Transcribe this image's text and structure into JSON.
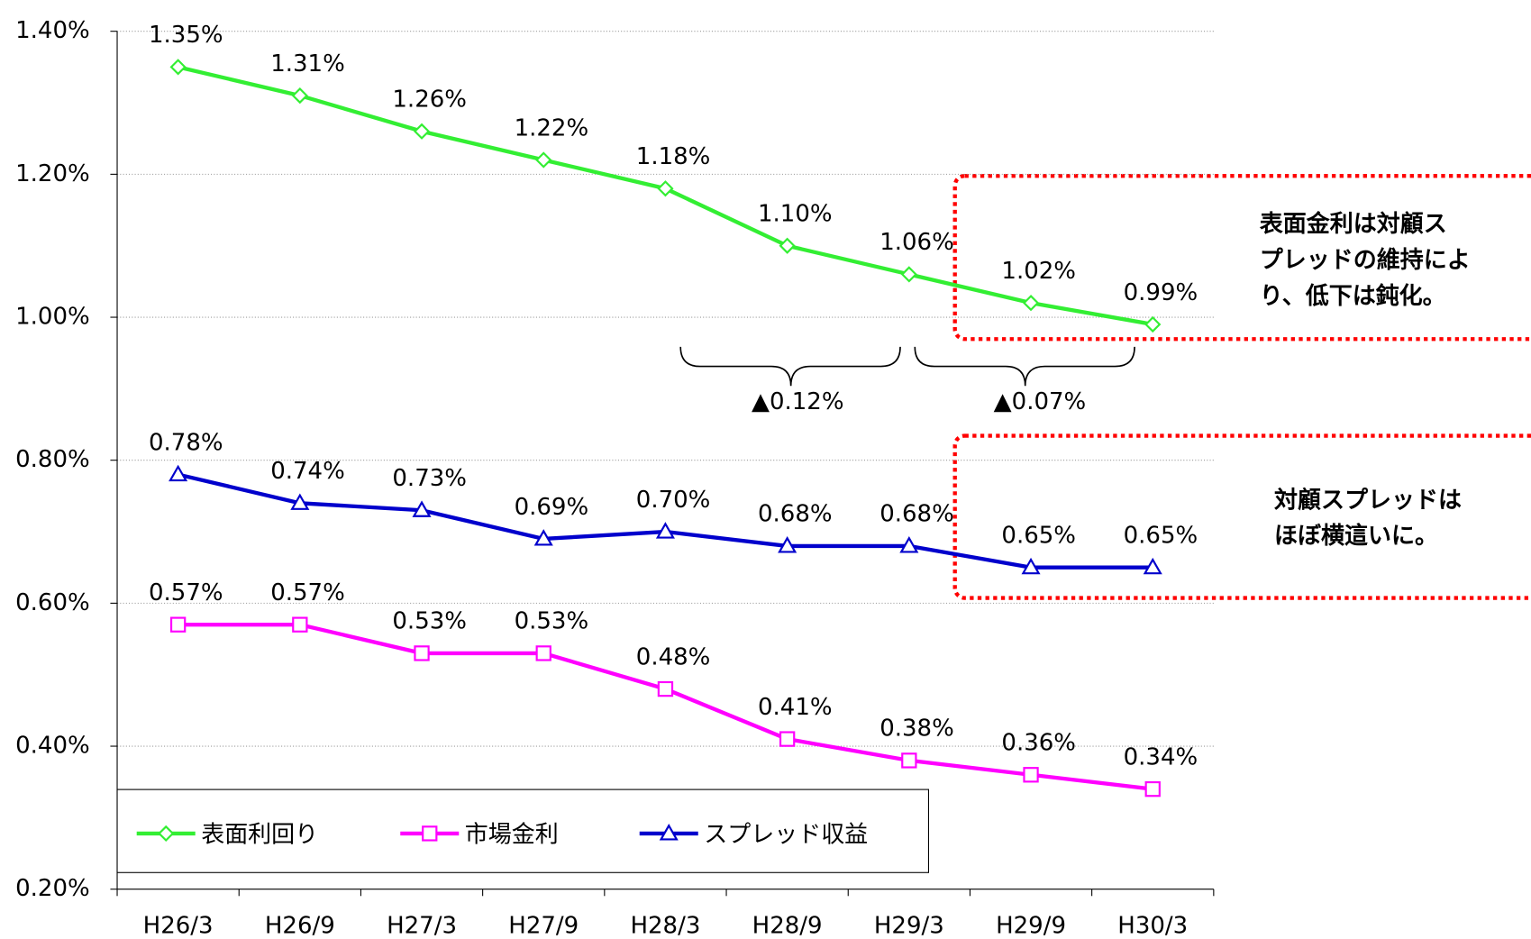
{
  "chart_data": {
    "type": "line",
    "categories": [
      "H26/3",
      "H26/9",
      "H27/3",
      "H27/9",
      "H28/3",
      "H28/9",
      "H29/3",
      "H29/9",
      "H30/3"
    ],
    "series": [
      {
        "name": "表面利回り",
        "color": "#33ee33",
        "marker": "diamond",
        "values": [
          1.35,
          1.31,
          1.26,
          1.22,
          1.18,
          1.1,
          1.06,
          1.02,
          0.99
        ],
        "value_labels": [
          "1.35%",
          "1.31%",
          "1.26%",
          "1.22%",
          "1.18%",
          "1.10%",
          "1.06%",
          "1.02%",
          "0.99%"
        ]
      },
      {
        "name": "市場金利",
        "color": "#ff00ff",
        "marker": "square",
        "values": [
          0.57,
          0.57,
          0.53,
          0.53,
          0.48,
          0.41,
          0.38,
          0.36,
          0.34
        ],
        "value_labels": [
          "0.57%",
          "0.57%",
          "0.53%",
          "0.53%",
          "0.48%",
          "0.41%",
          "0.38%",
          "0.36%",
          "0.34%"
        ]
      },
      {
        "name": "スプレッド収益",
        "color": "#0000cc",
        "marker": "triangle",
        "values": [
          0.78,
          0.74,
          0.73,
          0.69,
          0.7,
          0.68,
          0.68,
          0.65,
          0.65
        ],
        "value_labels": [
          "0.78%",
          "0.74%",
          "0.73%",
          "0.69%",
          "0.70%",
          "0.68%",
          "0.68%",
          "0.65%",
          "0.65%"
        ]
      }
    ],
    "ylim": [
      0.2,
      1.4
    ],
    "yticks": [
      {
        "value": 0.2,
        "label": "0.20%"
      },
      {
        "value": 0.4,
        "label": "0.40%"
      },
      {
        "value": 0.6,
        "label": "0.60%"
      },
      {
        "value": 0.8,
        "label": "0.80%"
      },
      {
        "value": 1.0,
        "label": "1.00%"
      },
      {
        "value": 1.2,
        "label": "1.20%"
      },
      {
        "value": 1.4,
        "label": "1.40%"
      }
    ],
    "grid": true,
    "legend": "lower left",
    "annotations": [
      {
        "text": "▲0.12%",
        "color": "#ff0000"
      },
      {
        "text": "▲0.07%",
        "color": "#ff0000"
      },
      {
        "lines": [
          "表面金利は対顧ス",
          "プレッドの維持によ",
          "り、低下は鈍化。"
        ]
      },
      {
        "lines": [
          "対顧スプレッドは",
          "ほぼ横這いに。"
        ]
      }
    ]
  }
}
